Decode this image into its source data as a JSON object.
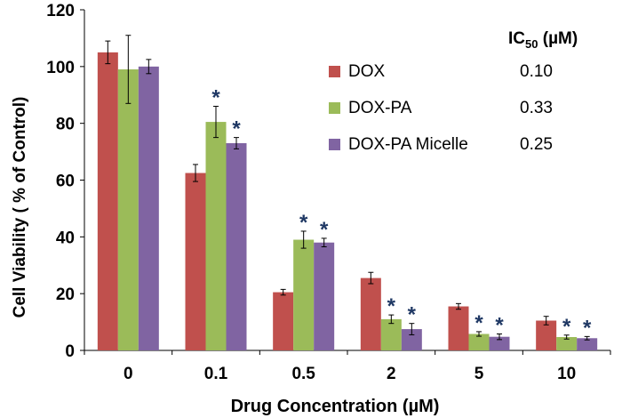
{
  "chart_data": {
    "type": "bar",
    "xlabel": "Drug Concentration (µM)",
    "ylabel": "Cell Viability ( % of Control)",
    "ylim": [
      0,
      120
    ],
    "yticks": [
      0,
      20,
      40,
      60,
      80,
      100,
      120
    ],
    "categories": [
      "0",
      "0.1",
      "0.5",
      "2",
      "5",
      "10"
    ],
    "series": [
      {
        "name": "DOX",
        "color": "#c0504d",
        "ic50": "0.10",
        "values": [
          105,
          62.5,
          20.5,
          25.5,
          15.5,
          10.5
        ],
        "errors": [
          4,
          3,
          1,
          2,
          1,
          1.5
        ],
        "significant": [
          false,
          false,
          false,
          false,
          false,
          false
        ]
      },
      {
        "name": "DOX-PA",
        "color": "#9bbb59",
        "ic50": "0.33",
        "values": [
          99,
          80.5,
          39,
          11,
          5.8,
          4.7
        ],
        "errors": [
          12,
          5.5,
          3,
          1.5,
          0.8,
          0.7
        ],
        "significant": [
          false,
          true,
          true,
          true,
          true,
          true
        ]
      },
      {
        "name": "DOX-PA Micelle",
        "color": "#8064a2",
        "ic50": "0.25",
        "values": [
          100,
          73,
          38,
          7.5,
          4.8,
          4.3
        ],
        "errors": [
          2.5,
          2,
          1.5,
          2,
          1,
          0.6
        ],
        "significant": [
          false,
          true,
          true,
          true,
          true,
          true
        ]
      }
    ],
    "ic50_header": {
      "prefix": "IC",
      "subscript": "50",
      "suffix": " (µM)"
    },
    "significance_marker": "*",
    "significance_color": "#1f3864"
  }
}
